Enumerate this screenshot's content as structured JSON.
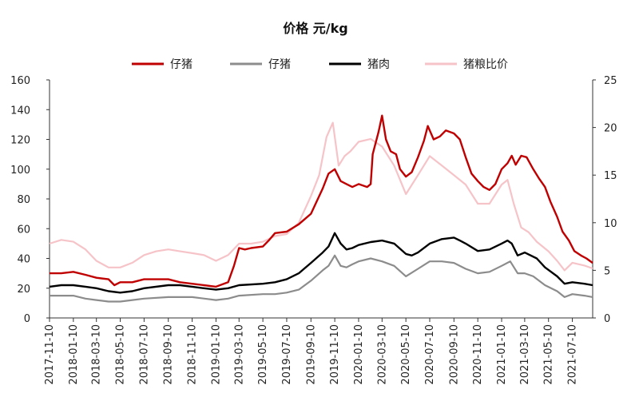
{
  "chart_data": {
    "type": "line",
    "title": "价格 元/kg",
    "grid": false,
    "legend_placement": "top",
    "x_ticks": [
      "2017-11-10",
      "2018-01-10",
      "2018-03-10",
      "2018-05-10",
      "2018-07-10",
      "2018-09-10",
      "2018-11-10",
      "2019-01-10",
      "2019-03-10",
      "2019-05-10",
      "2019-07-10",
      "2019-09-10",
      "2019-11-10",
      "2020-01-10",
      "2020-03-10",
      "2020-05-10",
      "2020-07-10",
      "2020-09-10",
      "2020-11-10",
      "2021-01-10",
      "2021-03-10",
      "2021-05-10",
      "2021-07-10"
    ],
    "x_range": [
      "2017-11-10",
      "2021-08-31"
    ],
    "y_left_range": [
      0,
      160
    ],
    "y_left_ticks": [
      0,
      20,
      40,
      60,
      80,
      100,
      120,
      140,
      160
    ],
    "y_right_range": [
      0,
      25
    ],
    "y_right_ticks": [
      0,
      5,
      10,
      15,
      20,
      25
    ],
    "series": [
      {
        "name": "仔猪",
        "axis": "left",
        "color": "#c00000",
        "width": 2.4,
        "points": [
          [
            "2017-11-10",
            30
          ],
          [
            "2017-12-10",
            30
          ],
          [
            "2018-01-10",
            31
          ],
          [
            "2018-02-10",
            29
          ],
          [
            "2018-03-10",
            27
          ],
          [
            "2018-04-10",
            26
          ],
          [
            "2018-04-25",
            22
          ],
          [
            "2018-05-10",
            24
          ],
          [
            "2018-06-10",
            24
          ],
          [
            "2018-07-10",
            26
          ],
          [
            "2018-08-10",
            26
          ],
          [
            "2018-09-10",
            26
          ],
          [
            "2018-10-10",
            24
          ],
          [
            "2018-11-10",
            23
          ],
          [
            "2018-12-10",
            22
          ],
          [
            "2019-01-10",
            21
          ],
          [
            "2019-02-10",
            24
          ],
          [
            "2019-02-25",
            35
          ],
          [
            "2019-03-10",
            47
          ],
          [
            "2019-03-25",
            46
          ],
          [
            "2019-04-10",
            47
          ],
          [
            "2019-05-10",
            48
          ],
          [
            "2019-05-25",
            52
          ],
          [
            "2019-06-10",
            57
          ],
          [
            "2019-07-10",
            58
          ],
          [
            "2019-08-10",
            63
          ],
          [
            "2019-09-10",
            70
          ],
          [
            "2019-10-10",
            87
          ],
          [
            "2019-10-25",
            97
          ],
          [
            "2019-11-10",
            100
          ],
          [
            "2019-11-25",
            92
          ],
          [
            "2019-12-10",
            90
          ],
          [
            "2019-12-25",
            88
          ],
          [
            "2020-01-10",
            90
          ],
          [
            "2020-02-01",
            88
          ],
          [
            "2020-02-10",
            90
          ],
          [
            "2020-02-15",
            110
          ],
          [
            "2020-03-01",
            125
          ],
          [
            "2020-03-10",
            136
          ],
          [
            "2020-03-20",
            120
          ],
          [
            "2020-04-01",
            112
          ],
          [
            "2020-04-15",
            110
          ],
          [
            "2020-04-25",
            100
          ],
          [
            "2020-05-10",
            95
          ],
          [
            "2020-05-25",
            98
          ],
          [
            "2020-06-10",
            108
          ],
          [
            "2020-06-25",
            119
          ],
          [
            "2020-07-05",
            129
          ],
          [
            "2020-07-20",
            120
          ],
          [
            "2020-08-05",
            122
          ],
          [
            "2020-08-20",
            126
          ],
          [
            "2020-09-10",
            124
          ],
          [
            "2020-09-25",
            120
          ],
          [
            "2020-10-10",
            108
          ],
          [
            "2020-10-25",
            97
          ],
          [
            "2020-11-10",
            92
          ],
          [
            "2020-11-25",
            88
          ],
          [
            "2020-12-10",
            86
          ],
          [
            "2020-12-25",
            90
          ],
          [
            "2021-01-10",
            100
          ],
          [
            "2021-01-25",
            104
          ],
          [
            "2021-02-05",
            109
          ],
          [
            "2021-02-15",
            103
          ],
          [
            "2021-03-01",
            109
          ],
          [
            "2021-03-15",
            108
          ],
          [
            "2021-04-01",
            100
          ],
          [
            "2021-04-15",
            94
          ],
          [
            "2021-05-01",
            88
          ],
          [
            "2021-05-15",
            78
          ],
          [
            "2021-06-01",
            68
          ],
          [
            "2021-06-15",
            58
          ],
          [
            "2021-07-01",
            52
          ],
          [
            "2021-07-15",
            45
          ],
          [
            "2021-08-01",
            42
          ],
          [
            "2021-08-15",
            40
          ],
          [
            "2021-08-31",
            37
          ]
        ]
      },
      {
        "name": "仔猪",
        "axis": "left",
        "color": "#8c8c8c",
        "width": 2.2,
        "points": [
          [
            "2017-11-10",
            15
          ],
          [
            "2018-01-10",
            15
          ],
          [
            "2018-02-10",
            13
          ],
          [
            "2018-03-10",
            12
          ],
          [
            "2018-04-10",
            11
          ],
          [
            "2018-05-10",
            11
          ],
          [
            "2018-06-10",
            12
          ],
          [
            "2018-07-10",
            13
          ],
          [
            "2018-09-10",
            14
          ],
          [
            "2018-11-10",
            14
          ],
          [
            "2019-01-10",
            12
          ],
          [
            "2019-02-10",
            13
          ],
          [
            "2019-03-10",
            15
          ],
          [
            "2019-05-10",
            16
          ],
          [
            "2019-06-10",
            16
          ],
          [
            "2019-07-10",
            17
          ],
          [
            "2019-08-10",
            19
          ],
          [
            "2019-09-10",
            25
          ],
          [
            "2019-10-10",
            32
          ],
          [
            "2019-10-25",
            35
          ],
          [
            "2019-11-10",
            42
          ],
          [
            "2019-11-25",
            35
          ],
          [
            "2019-12-10",
            34
          ],
          [
            "2019-12-25",
            36
          ],
          [
            "2020-01-10",
            38
          ],
          [
            "2020-02-10",
            40
          ],
          [
            "2020-03-10",
            38
          ],
          [
            "2020-04-10",
            35
          ],
          [
            "2020-05-10",
            28
          ],
          [
            "2020-06-10",
            33
          ],
          [
            "2020-07-10",
            38
          ],
          [
            "2020-08-10",
            38
          ],
          [
            "2020-09-10",
            37
          ],
          [
            "2020-10-10",
            33
          ],
          [
            "2020-11-10",
            30
          ],
          [
            "2020-12-10",
            31
          ],
          [
            "2021-01-10",
            35
          ],
          [
            "2021-02-01",
            38
          ],
          [
            "2021-02-20",
            30
          ],
          [
            "2021-03-10",
            30
          ],
          [
            "2021-04-01",
            28
          ],
          [
            "2021-05-01",
            22
          ],
          [
            "2021-06-01",
            18
          ],
          [
            "2021-06-20",
            14
          ],
          [
            "2021-07-10",
            16
          ],
          [
            "2021-08-10",
            15
          ],
          [
            "2021-08-31",
            14
          ]
        ]
      },
      {
        "name": "猪肉",
        "axis": "left",
        "color": "#000000",
        "width": 2.4,
        "points": [
          [
            "2017-11-10",
            21
          ],
          [
            "2017-12-10",
            22
          ],
          [
            "2018-01-10",
            22
          ],
          [
            "2018-02-10",
            21
          ],
          [
            "2018-03-10",
            20
          ],
          [
            "2018-04-10",
            18
          ],
          [
            "2018-05-10",
            17
          ],
          [
            "2018-06-10",
            18
          ],
          [
            "2018-07-10",
            20
          ],
          [
            "2018-09-10",
            22
          ],
          [
            "2018-10-10",
            22
          ],
          [
            "2018-11-10",
            21
          ],
          [
            "2018-12-10",
            20
          ],
          [
            "2019-01-10",
            19
          ],
          [
            "2019-02-10",
            20
          ],
          [
            "2019-03-10",
            22
          ],
          [
            "2019-05-10",
            23
          ],
          [
            "2019-06-10",
            24
          ],
          [
            "2019-07-10",
            26
          ],
          [
            "2019-08-10",
            30
          ],
          [
            "2019-09-10",
            37
          ],
          [
            "2019-10-10",
            44
          ],
          [
            "2019-10-25",
            48
          ],
          [
            "2019-11-10",
            57
          ],
          [
            "2019-11-25",
            50
          ],
          [
            "2019-12-10",
            46
          ],
          [
            "2019-12-25",
            47
          ],
          [
            "2020-01-10",
            49
          ],
          [
            "2020-02-10",
            51
          ],
          [
            "2020-03-10",
            52
          ],
          [
            "2020-04-10",
            50
          ],
          [
            "2020-05-10",
            43
          ],
          [
            "2020-05-25",
            42
          ],
          [
            "2020-06-10",
            44
          ],
          [
            "2020-07-10",
            50
          ],
          [
            "2020-08-10",
            53
          ],
          [
            "2020-09-10",
            54
          ],
          [
            "2020-09-25",
            52
          ],
          [
            "2020-10-10",
            50
          ],
          [
            "2020-11-10",
            45
          ],
          [
            "2020-12-10",
            46
          ],
          [
            "2021-01-10",
            50
          ],
          [
            "2021-01-25",
            52
          ],
          [
            "2021-02-05",
            50
          ],
          [
            "2021-02-20",
            42
          ],
          [
            "2021-03-10",
            44
          ],
          [
            "2021-04-10",
            40
          ],
          [
            "2021-05-01",
            34
          ],
          [
            "2021-06-01",
            28
          ],
          [
            "2021-06-20",
            23
          ],
          [
            "2021-07-10",
            24
          ],
          [
            "2021-08-10",
            23
          ],
          [
            "2021-08-31",
            22
          ]
        ]
      },
      {
        "name": "猪粮比价",
        "axis": "right",
        "color": "#f6c4c8",
        "width": 2.2,
        "points": [
          [
            "2017-11-10",
            7.8
          ],
          [
            "2017-12-10",
            8.2
          ],
          [
            "2018-01-10",
            8.0
          ],
          [
            "2018-02-10",
            7.2
          ],
          [
            "2018-03-10",
            6.0
          ],
          [
            "2018-04-10",
            5.3
          ],
          [
            "2018-05-10",
            5.3
          ],
          [
            "2018-06-10",
            5.8
          ],
          [
            "2018-07-10",
            6.6
          ],
          [
            "2018-08-10",
            7.0
          ],
          [
            "2018-09-10",
            7.2
          ],
          [
            "2018-10-10",
            7.0
          ],
          [
            "2018-11-10",
            6.8
          ],
          [
            "2018-12-10",
            6.6
          ],
          [
            "2019-01-10",
            6.0
          ],
          [
            "2019-02-10",
            6.6
          ],
          [
            "2019-03-10",
            7.8
          ],
          [
            "2019-04-10",
            7.8
          ],
          [
            "2019-05-10",
            8.0
          ],
          [
            "2019-06-10",
            8.6
          ],
          [
            "2019-07-10",
            8.8
          ],
          [
            "2019-08-10",
            10.0
          ],
          [
            "2019-09-10",
            12.8
          ],
          [
            "2019-10-01",
            15.0
          ],
          [
            "2019-10-20",
            19.0
          ],
          [
            "2019-11-05",
            20.5
          ],
          [
            "2019-11-20",
            16.0
          ],
          [
            "2019-12-05",
            17.0
          ],
          [
            "2019-12-20",
            17.5
          ],
          [
            "2020-01-10",
            18.5
          ],
          [
            "2020-02-10",
            18.8
          ],
          [
            "2020-03-10",
            18.0
          ],
          [
            "2020-04-10",
            16.0
          ],
          [
            "2020-05-10",
            13.0
          ],
          [
            "2020-06-10",
            15.0
          ],
          [
            "2020-07-10",
            17.0
          ],
          [
            "2020-08-10",
            16.0
          ],
          [
            "2020-09-10",
            15.0
          ],
          [
            "2020-10-10",
            14.0
          ],
          [
            "2020-11-10",
            12.0
          ],
          [
            "2020-12-10",
            12.0
          ],
          [
            "2021-01-10",
            14.0
          ],
          [
            "2021-01-25",
            14.5
          ],
          [
            "2021-02-10",
            12.0
          ],
          [
            "2021-03-01",
            9.5
          ],
          [
            "2021-03-20",
            9.0
          ],
          [
            "2021-04-10",
            8.0
          ],
          [
            "2021-05-10",
            7.0
          ],
          [
            "2021-06-01",
            6.0
          ],
          [
            "2021-06-20",
            5.0
          ],
          [
            "2021-07-10",
            5.8
          ],
          [
            "2021-08-10",
            5.5
          ],
          [
            "2021-08-31",
            5.2
          ]
        ]
      }
    ]
  }
}
